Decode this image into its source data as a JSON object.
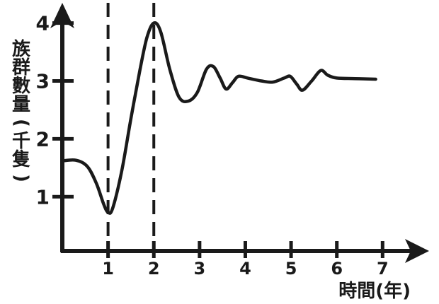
{
  "chart_data": {
    "type": "line",
    "xlabel": "時間(年)",
    "ylabel": "族群數量(千隻)",
    "ylabel_chars": [
      "族",
      "群",
      "數",
      "量",
      "(",
      "千",
      "隻",
      ")"
    ],
    "x_ticks": [
      "1",
      "2",
      "3",
      "4",
      "5",
      "6",
      "7"
    ],
    "x_tick_values": [
      1,
      2,
      3,
      4,
      5,
      6,
      7
    ],
    "y_ticks": [
      "1",
      "2",
      "3",
      "4"
    ],
    "y_tick_values": [
      1,
      2,
      3,
      4
    ],
    "xlim": [
      0,
      7.8
    ],
    "ylim": [
      0.1,
      4.3
    ],
    "reference_lines_x": [
      1,
      2
    ],
    "reference_line_style": "dashed",
    "grid": false,
    "series": [
      {
        "line_color": "#1a1a1a",
        "points": [
          [
            0.0,
            1.62
          ],
          [
            0.3,
            1.63
          ],
          [
            0.55,
            1.52
          ],
          [
            0.75,
            1.22
          ],
          [
            0.9,
            0.88
          ],
          [
            1.0,
            0.73
          ],
          [
            1.1,
            0.8
          ],
          [
            1.3,
            1.45
          ],
          [
            1.5,
            2.35
          ],
          [
            1.7,
            3.2
          ],
          [
            1.85,
            3.75
          ],
          [
            2.0,
            4.0
          ],
          [
            2.15,
            3.85
          ],
          [
            2.35,
            3.2
          ],
          [
            2.55,
            2.72
          ],
          [
            2.75,
            2.65
          ],
          [
            2.95,
            2.8
          ],
          [
            3.15,
            3.2
          ],
          [
            3.3,
            3.25
          ],
          [
            3.45,
            3.05
          ],
          [
            3.58,
            2.86
          ],
          [
            3.72,
            2.97
          ],
          [
            3.85,
            3.08
          ],
          [
            4.05,
            3.05
          ],
          [
            4.35,
            3.0
          ],
          [
            4.6,
            2.98
          ],
          [
            4.85,
            3.05
          ],
          [
            4.98,
            3.08
          ],
          [
            5.12,
            2.95
          ],
          [
            5.25,
            2.84
          ],
          [
            5.45,
            3.0
          ],
          [
            5.65,
            3.18
          ],
          [
            5.8,
            3.1
          ],
          [
            6.0,
            3.05
          ],
          [
            6.4,
            3.04
          ],
          [
            6.85,
            3.03
          ]
        ]
      }
    ]
  }
}
